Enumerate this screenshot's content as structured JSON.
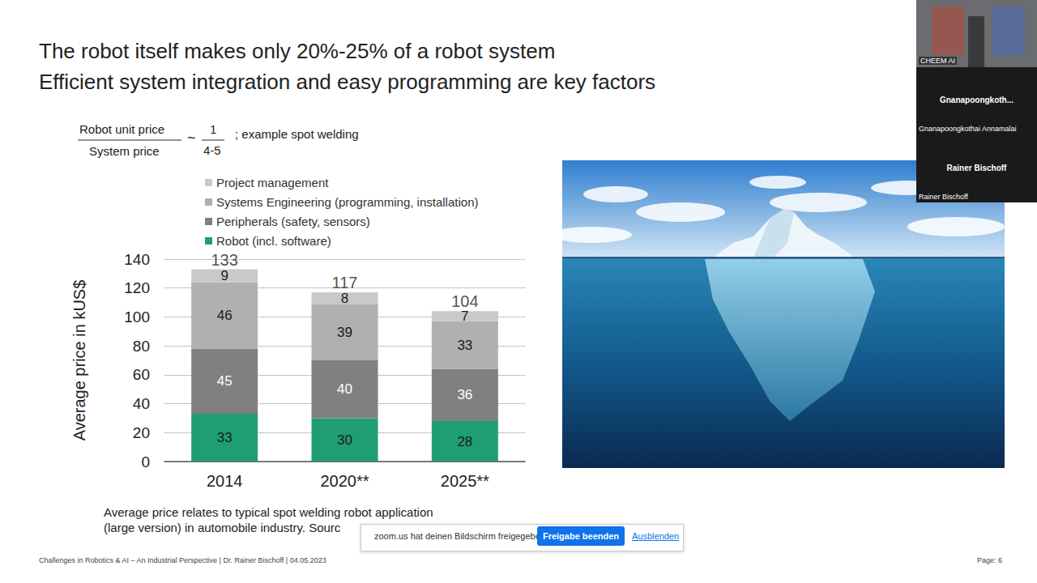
{
  "slide": {
    "title_lines": [
      "The robot itself makes only 20%-25% of a robot system",
      "Efficient system integration and easy programming are key factors"
    ],
    "formula": {
      "numerator": "Robot unit price",
      "denominator": "System price",
      "relation": "~",
      "ratio_numerator": "1",
      "ratio_denominator": "4-5",
      "note": "; example spot welding"
    },
    "caption_lines": [
      "Average price relates to typical spot welding robot application",
      "(large version) in automobile industry. Sourc"
    ],
    "footer": "Challenges in Robotics & AI – An Industrial Perspective | Dr. Rainer Bischoff | 04.05.2023",
    "page": "Page: 6"
  },
  "chart_data": {
    "type": "bar",
    "stacked": true,
    "data_labels": true,
    "y_label": "Average price in kUS$",
    "categories": [
      "2014",
      "2020**",
      "2025**"
    ],
    "series": [
      {
        "name": "Robot (incl. software)",
        "color": "#1f9e74",
        "values": [
          33,
          30,
          28
        ]
      },
      {
        "name": "Peripherals (safety, sensors)",
        "color": "#808080",
        "values": [
          45,
          40,
          36
        ]
      },
      {
        "name": "Systems Engineering (programming, installation)",
        "color": "#b0b0b0",
        "values": [
          46,
          39,
          33
        ]
      },
      {
        "name": "Project management",
        "color": "#c9c9c9",
        "values": [
          9,
          8,
          7
        ]
      }
    ],
    "totals": [
      133,
      117,
      104
    ],
    "ylim": [
      0,
      140
    ],
    "yticks": [
      0,
      20,
      40,
      60,
      80,
      100,
      120,
      140
    ],
    "grid": true,
    "legend": "top-left"
  },
  "overlay": {
    "share_notice": "zoom.us hat deinen Bildschirm freigegeben.",
    "stop_button": "Freigabe beenden",
    "hide_link": "Ausblenden",
    "video_label": "CHEEM AI",
    "participants": [
      {
        "heading": "Gnanapoongkoth...",
        "name": "Gnanapoongkothai Annamalai"
      },
      {
        "heading": "Rainer Bischoff",
        "name": "Rainer Bischoff"
      }
    ]
  }
}
